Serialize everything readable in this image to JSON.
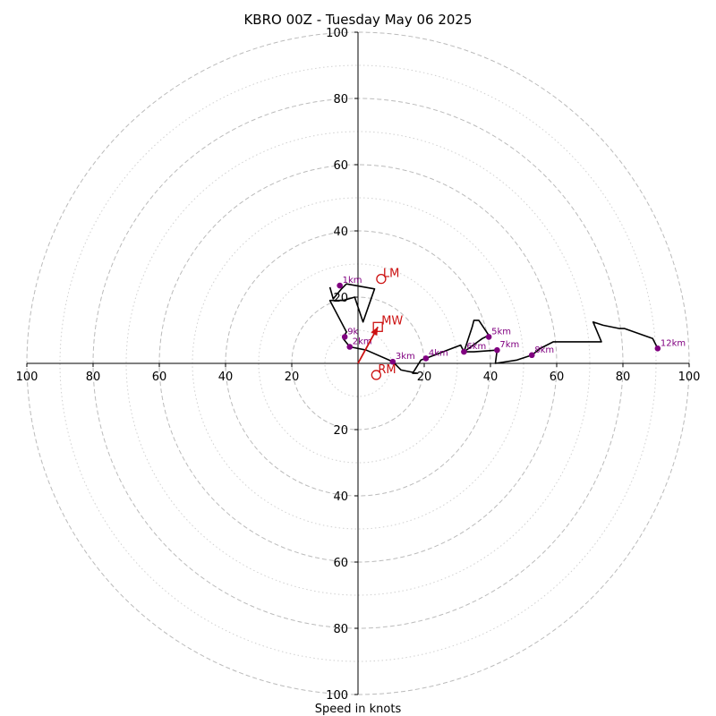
{
  "chart_data": {
    "type": "line",
    "title": "KBRO 00Z - Tuesday May 06 2025",
    "xlabel": "Speed in knots",
    "ylabel": "",
    "xlim": [
      -100,
      100
    ],
    "ylim": [
      -100,
      100
    ],
    "ring_labels": [
      "20",
      "40",
      "60",
      "80",
      "100"
    ],
    "major_ring_values": [
      20,
      40,
      60,
      80,
      100
    ],
    "minor_ring_values": [
      10,
      30,
      50,
      70,
      90
    ],
    "grid": true,
    "colors": {
      "trace": "#000000",
      "height_markers": "#800080",
      "motion": "#cc1111",
      "grid": "#bbbbbb"
    },
    "hodograph": {
      "u": [
        -8.5,
        -7.5,
        -5,
        -3.5,
        5,
        1.5,
        -1,
        -4.5,
        -8.5,
        -3.5,
        -4.5,
        -2.5,
        2.5,
        10.5,
        13,
        18,
        16.5,
        19,
        20.5,
        31,
        32,
        34.5,
        35,
        36.5,
        39.5,
        37.5,
        32,
        35,
        42,
        41.5,
        48,
        52.5,
        55,
        59,
        73.5,
        71,
        74,
        79,
        80.5,
        89,
        90.5
      ],
      "v": [
        23,
        19.5,
        22.5,
        24,
        22.5,
        12.5,
        20,
        19,
        19,
        9.5,
        7.5,
        5,
        4,
        0.5,
        -2,
        -3,
        -3,
        1,
        1.5,
        5.5,
        3.5,
        11,
        13,
        13,
        8.5,
        7.5,
        3.5,
        3.5,
        4,
        0,
        1,
        2.5,
        4.5,
        6.5,
        6.5,
        12.5,
        11.5,
        10.5,
        10.5,
        7.5,
        4.5
      ]
    },
    "height_markers": [
      {
        "label": "1km",
        "u": -5.5,
        "v": 23.5
      },
      {
        "label": "2km",
        "u": -2.5,
        "v": 5
      },
      {
        "label": "3km",
        "u": 10.5,
        "v": 0.5
      },
      {
        "label": "4km",
        "u": 20.5,
        "v": 1.5
      },
      {
        "label": "5km",
        "u": 39.5,
        "v": 8
      },
      {
        "label": "6km",
        "u": 32,
        "v": 3.5
      },
      {
        "label": "7km",
        "u": 42,
        "v": 4
      },
      {
        "label": "8km",
        "u": 52.5,
        "v": 2.5
      },
      {
        "label": "9k",
        "u": -4,
        "v": 8
      },
      {
        "label": "12km",
        "u": 90.5,
        "v": 4.5
      }
    ],
    "storm_motion": {
      "arrow": {
        "u": 6,
        "v": 11
      },
      "LM": {
        "label": "LM",
        "u": 7,
        "v": 25.5
      },
      "MW": {
        "label": "MW",
        "u": 6,
        "v": 11
      },
      "RM": {
        "label": "RM",
        "u": 5.5,
        "v": -3.5
      }
    }
  }
}
